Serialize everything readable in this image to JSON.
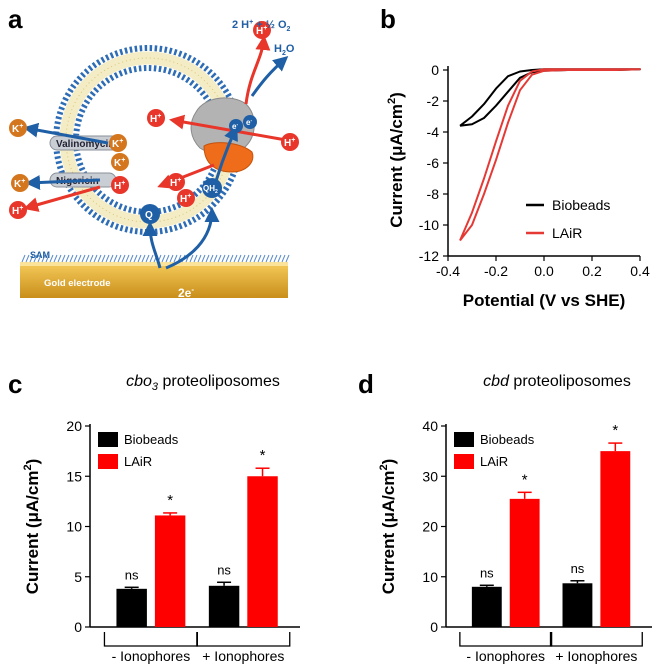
{
  "panels": {
    "a": "a",
    "b": "b",
    "c": "c",
    "d": "d"
  },
  "schematic": {
    "sam": "SAM",
    "electrode": "Gold electrode",
    "electrons": "2e",
    "electron_sup": "-",
    "reaction": "2 H",
    "reaction_tail": " + ½ O",
    "reaction_sub": "2",
    "water": "H",
    "water_sub": "2",
    "water_tail": "O",
    "valinomycin": "Valinomycin",
    "nigericin": "Nigericin",
    "k": "K",
    "h": "H",
    "plus": "+",
    "q": "Q",
    "qh": "QH",
    "qh_sub": "2",
    "e": "e",
    "colors": {
      "proton": "#e8362a",
      "potassium": "#d4761e",
      "arrow_blue": "#1f5fa5",
      "lipid": "#2e6db5",
      "gold": "#e3a92a",
      "protein": "#ef6c1a"
    }
  },
  "chart_data": [
    {
      "panel": "b",
      "type": "line",
      "xlabel": "Potential (V vs SHE)",
      "ylabel": "Current (μA/cm²)",
      "xlim": [
        -0.4,
        0.4
      ],
      "ylim": [
        -12,
        0
      ],
      "xticks": [
        "-0.4",
        "-0.2",
        "0.0",
        "0.2",
        "0.4"
      ],
      "yticks": [
        "0",
        "-2",
        "-4",
        "-6",
        "-8",
        "-10",
        "-12"
      ],
      "legend_position": "bottom-right",
      "series": [
        {
          "name": "Biobeads",
          "color": "#000000",
          "x": [
            -0.35,
            -0.3,
            -0.25,
            -0.2,
            -0.15,
            -0.1,
            -0.05,
            0.0,
            0.1,
            0.2,
            0.3,
            0.4,
            0.3,
            0.2,
            0.1,
            0.0,
            -0.05,
            -0.1,
            -0.15,
            -0.2,
            -0.25,
            -0.3,
            -0.35
          ],
          "y": [
            -3.6,
            -3.0,
            -2.2,
            -1.2,
            -0.4,
            -0.1,
            0.0,
            0.05,
            0.05,
            0.05,
            0.05,
            0.05,
            0.0,
            0.0,
            0.0,
            -0.05,
            -0.15,
            -0.5,
            -1.4,
            -2.3,
            -3.1,
            -3.5,
            -3.6
          ]
        },
        {
          "name": "LAiR",
          "color": "#e53935",
          "x": [
            -0.35,
            -0.3,
            -0.25,
            -0.2,
            -0.15,
            -0.1,
            -0.05,
            0.0,
            0.1,
            0.2,
            0.3,
            0.4,
            0.3,
            0.2,
            0.1,
            0.0,
            -0.05,
            -0.1,
            -0.15,
            -0.2,
            -0.25,
            -0.3,
            -0.35
          ],
          "y": [
            -11.0,
            -9.2,
            -7.0,
            -4.6,
            -2.3,
            -0.7,
            -0.1,
            0.05,
            0.05,
            0.05,
            0.05,
            0.05,
            0.0,
            0.0,
            0.0,
            -0.05,
            -0.3,
            -1.3,
            -3.4,
            -5.8,
            -8.0,
            -10.0,
            -11.0
          ]
        }
      ]
    },
    {
      "panel": "c",
      "type": "bar",
      "title_italic": "cbo",
      "title_sub": "3",
      "title_rest": " proteoliposomes",
      "ylabel": "Current (μA/cm²)",
      "ylim": [
        0,
        20
      ],
      "yticks": [
        "0",
        "5",
        "10",
        "15",
        "20"
      ],
      "groups": [
        "- Ionophores",
        "+ Ionophores"
      ],
      "legend_position": "top-left",
      "series": [
        {
          "name": "Biobeads",
          "color": "#000000",
          "values": [
            3.8,
            4.1
          ],
          "errors": [
            0.15,
            0.35
          ],
          "annotations": [
            "ns",
            "ns"
          ]
        },
        {
          "name": "LAiR",
          "color": "#ff0000",
          "values": [
            11.1,
            15.0
          ],
          "errors": [
            0.25,
            0.8
          ],
          "annotations": [
            "*",
            "*"
          ]
        }
      ]
    },
    {
      "panel": "d",
      "type": "bar",
      "title_italic": "cbd",
      "title_sub": "",
      "title_rest": " proteoliposomes",
      "ylabel": "Current (μA/cm²)",
      "ylim": [
        0,
        40
      ],
      "yticks": [
        "0",
        "10",
        "20",
        "30",
        "40"
      ],
      "groups": [
        "- Ionophores",
        "+ Ionophores"
      ],
      "legend_position": "top-left",
      "series": [
        {
          "name": "Biobeads",
          "color": "#000000",
          "values": [
            8.0,
            8.7
          ],
          "errors": [
            0.3,
            0.5
          ],
          "annotations": [
            "ns",
            "ns"
          ]
        },
        {
          "name": "LAiR",
          "color": "#ff0000",
          "values": [
            25.5,
            35.0
          ],
          "errors": [
            1.3,
            1.6
          ],
          "annotations": [
            "*",
            "*"
          ]
        }
      ]
    }
  ]
}
